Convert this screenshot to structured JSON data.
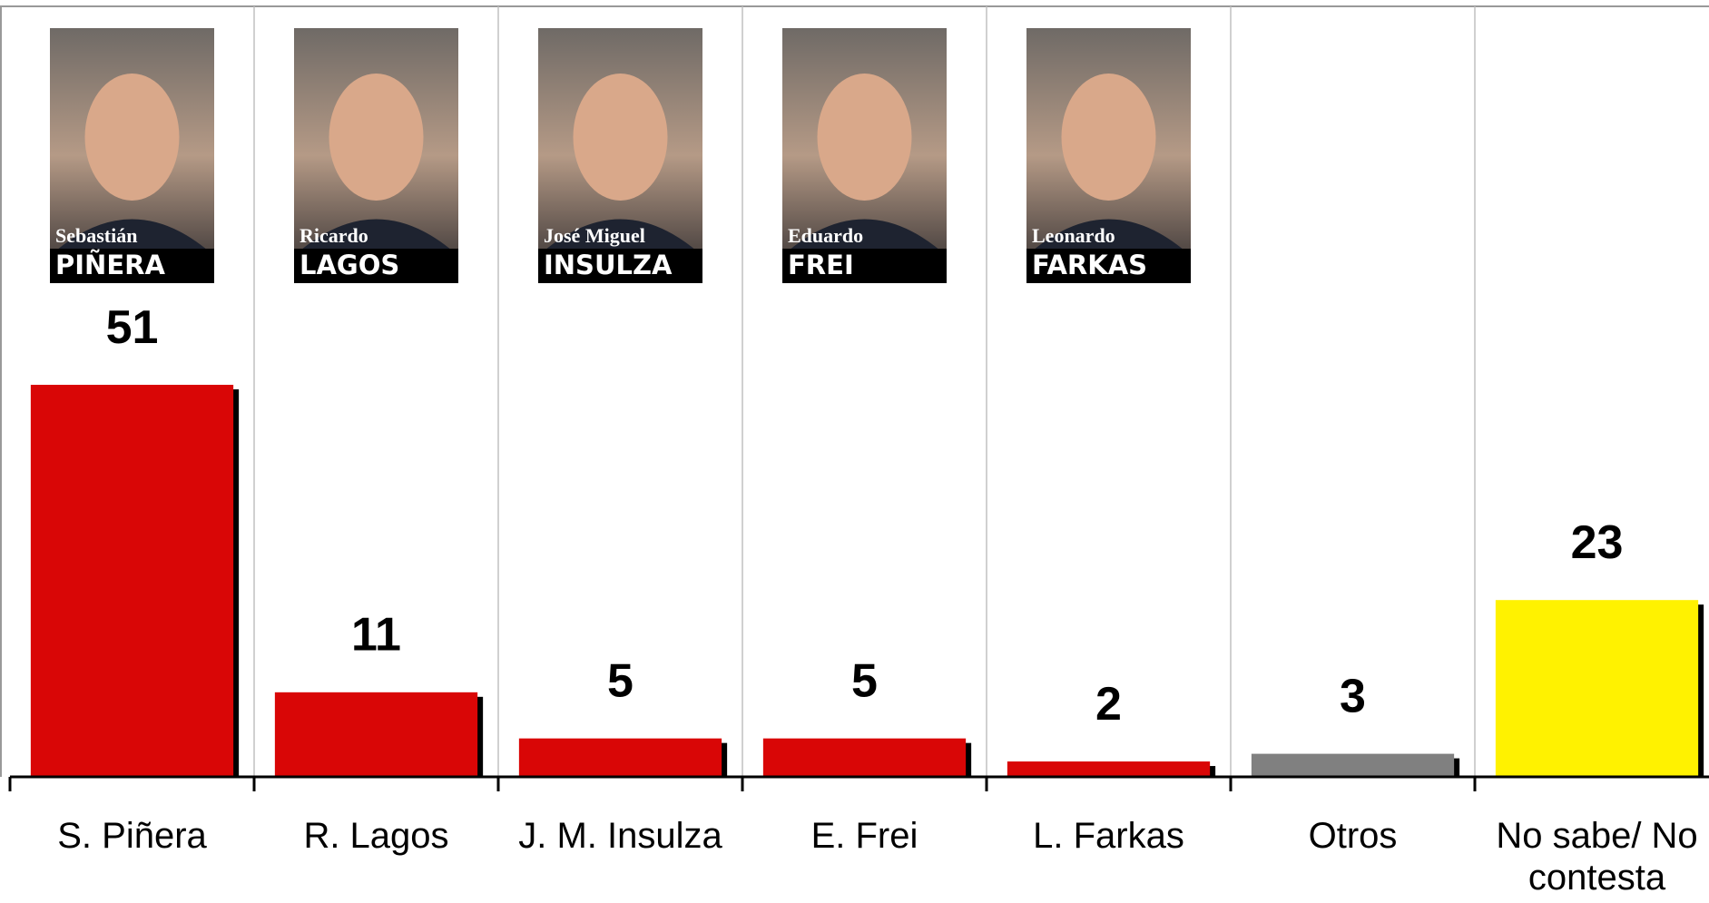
{
  "chart_data": {
    "type": "bar",
    "categories": [
      "S. Piñera",
      "R. Lagos",
      "J. M. Insulza",
      "E. Frei",
      "L. Farkas",
      "Otros",
      "No sabe/ No contesta"
    ],
    "values": [
      51,
      11,
      5,
      5,
      2,
      3,
      23
    ],
    "colors": [
      "#d90606",
      "#d90606",
      "#d90606",
      "#d90606",
      "#d90606",
      "#808080",
      "#fff200"
    ],
    "photos": [
      {
        "first": "Sebastián",
        "last": "PIÑERA"
      },
      {
        "first": "Ricardo",
        "last": "LAGOS"
      },
      {
        "first": "José Miguel",
        "last": "INSULZA"
      },
      {
        "first": "Eduardo",
        "last": "FREI"
      },
      {
        "first": "Leonardo",
        "last": "FARKAS"
      }
    ]
  }
}
